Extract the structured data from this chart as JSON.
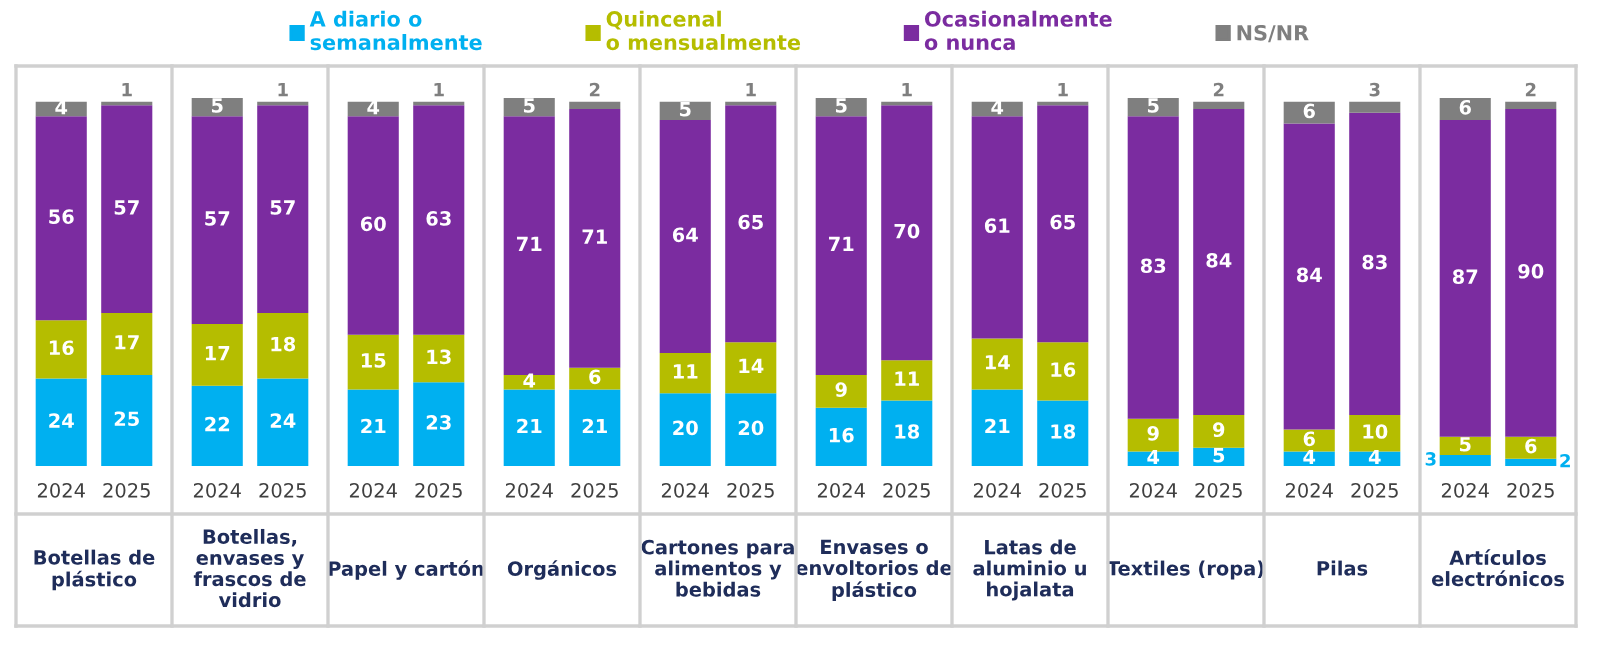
{
  "chart_data": [
    {
      "type": "bar",
      "stacked": true,
      "data_labels": true,
      "legend": "top",
      "title": "Botellas de\nplástico",
      "categories": [
        "2024",
        "2025"
      ],
      "series": [
        {
          "name": "A diario o\nsemanalmente",
          "color": "#00b0f0",
          "values": [
            24,
            25
          ]
        },
        {
          "name": "Quincenal\no mensualmente",
          "color": "#b5bd00",
          "values": [
            16,
            17
          ]
        },
        {
          "name": "Ocasionalmente\no nunca",
          "color": "#7b2ca0",
          "values": [
            56,
            57
          ]
        },
        {
          "name": "NS/NR",
          "color": "#7f7f7f",
          "values": [
            4,
            1
          ]
        }
      ]
    },
    {
      "type": "bar",
      "stacked": true,
      "data_labels": true,
      "title": "Botellas,\nenvases y\nfrascos de\nvidrio",
      "categories": [
        "2024",
        "2025"
      ],
      "series": [
        {
          "color": "#00b0f0",
          "values": [
            22,
            24
          ]
        },
        {
          "color": "#b5bd00",
          "values": [
            17,
            18
          ]
        },
        {
          "color": "#7b2ca0",
          "values": [
            57,
            57
          ]
        },
        {
          "color": "#7f7f7f",
          "values": [
            5,
            1
          ]
        }
      ]
    },
    {
      "type": "bar",
      "stacked": true,
      "data_labels": true,
      "title": "Papel y cartón",
      "categories": [
        "2024",
        "2025"
      ],
      "series": [
        {
          "color": "#00b0f0",
          "values": [
            21,
            23
          ]
        },
        {
          "color": "#b5bd00",
          "values": [
            15,
            13
          ]
        },
        {
          "color": "#7b2ca0",
          "values": [
            60,
            63
          ]
        },
        {
          "color": "#7f7f7f",
          "values": [
            4,
            1
          ]
        }
      ]
    },
    {
      "type": "bar",
      "stacked": true,
      "data_labels": true,
      "title": "Orgánicos",
      "categories": [
        "2024",
        "2025"
      ],
      "series": [
        {
          "color": "#00b0f0",
          "values": [
            21,
            21
          ]
        },
        {
          "color": "#b5bd00",
          "values": [
            4,
            6
          ]
        },
        {
          "color": "#7b2ca0",
          "values": [
            71,
            71
          ]
        },
        {
          "color": "#7f7f7f",
          "values": [
            5,
            2
          ]
        }
      ]
    },
    {
      "type": "bar",
      "stacked": true,
      "data_labels": true,
      "title": "Cartones para\nalimentos y\nbebidas",
      "categories": [
        "2024",
        "2025"
      ],
      "series": [
        {
          "color": "#00b0f0",
          "values": [
            20,
            20
          ]
        },
        {
          "color": "#b5bd00",
          "values": [
            11,
            14
          ]
        },
        {
          "color": "#7b2ca0",
          "values": [
            64,
            65
          ]
        },
        {
          "color": "#7f7f7f",
          "values": [
            5,
            1
          ]
        }
      ]
    },
    {
      "type": "bar",
      "stacked": true,
      "data_labels": true,
      "title": "Envases o\nenvoltorios de\nplástico",
      "categories": [
        "2024",
        "2025"
      ],
      "series": [
        {
          "color": "#00b0f0",
          "values": [
            16,
            18
          ]
        },
        {
          "color": "#b5bd00",
          "values": [
            9,
            11
          ]
        },
        {
          "color": "#7b2ca0",
          "values": [
            71,
            70
          ]
        },
        {
          "color": "#7f7f7f",
          "values": [
            5,
            1
          ]
        }
      ]
    },
    {
      "type": "bar",
      "stacked": true,
      "data_labels": true,
      "title": "Latas de\naluminio u\nhojalata",
      "categories": [
        "2024",
        "2025"
      ],
      "series": [
        {
          "color": "#00b0f0",
          "values": [
            21,
            18
          ]
        },
        {
          "color": "#b5bd00",
          "values": [
            14,
            16
          ]
        },
        {
          "color": "#7b2ca0",
          "values": [
            61,
            65
          ]
        },
        {
          "color": "#7f7f7f",
          "values": [
            4,
            1
          ]
        }
      ]
    },
    {
      "type": "bar",
      "stacked": true,
      "data_labels": true,
      "title": "Textiles (ropa)",
      "categories": [
        "2024",
        "2025"
      ],
      "series": [
        {
          "color": "#00b0f0",
          "values": [
            4,
            5
          ]
        },
        {
          "color": "#b5bd00",
          "values": [
            9,
            9
          ]
        },
        {
          "color": "#7b2ca0",
          "values": [
            83,
            84
          ]
        },
        {
          "color": "#7f7f7f",
          "values": [
            5,
            2
          ]
        }
      ]
    },
    {
      "type": "bar",
      "stacked": true,
      "data_labels": true,
      "title": "Pilas",
      "categories": [
        "2024",
        "2025"
      ],
      "series": [
        {
          "color": "#00b0f0",
          "values": [
            4,
            4
          ]
        },
        {
          "color": "#b5bd00",
          "values": [
            6,
            10
          ]
        },
        {
          "color": "#7b2ca0",
          "values": [
            84,
            83
          ]
        },
        {
          "color": "#7f7f7f",
          "values": [
            6,
            3
          ]
        }
      ]
    },
    {
      "type": "bar",
      "stacked": true,
      "data_labels": true,
      "title": "Artículos\nelectrónicos",
      "categories": [
        "2024",
        "2025"
      ],
      "series": [
        {
          "color": "#00b0f0",
          "values": [
            3,
            2
          ]
        },
        {
          "color": "#b5bd00",
          "values": [
            5,
            6
          ]
        },
        {
          "color": "#7b2ca0",
          "values": [
            87,
            90
          ]
        },
        {
          "color": "#7f7f7f",
          "values": [
            6,
            2
          ]
        }
      ]
    }
  ]
}
